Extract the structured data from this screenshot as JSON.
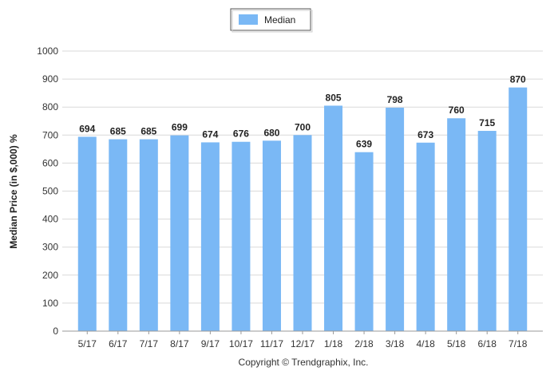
{
  "chart_data": {
    "type": "bar",
    "categories": [
      "5/17",
      "6/17",
      "7/17",
      "8/17",
      "9/17",
      "10/17",
      "11/17",
      "12/17",
      "1/18",
      "2/18",
      "3/18",
      "4/18",
      "5/18",
      "6/18",
      "7/18"
    ],
    "series": [
      {
        "name": "Median",
        "values": [
          694,
          685,
          685,
          699,
          674,
          676,
          680,
          700,
          805,
          639,
          798,
          673,
          760,
          715,
          870
        ]
      }
    ],
    "data_labels": [
      "694",
      "685",
      "685",
      "699",
      "674",
      "676",
      "680",
      "700",
      "805",
      "639",
      "798",
      "673",
      "760",
      "715",
      "870"
    ],
    "title": "",
    "xlabel": "",
    "ylabel": "Median Price (in $,000) %",
    "ylim": [
      0,
      1000
    ],
    "yticks": [
      "0",
      "100",
      "200",
      "300",
      "400",
      "500",
      "600",
      "700",
      "800",
      "900",
      "1000"
    ],
    "grid": true,
    "legend_position": "top-center",
    "bar_color": "#7ab8f5",
    "footer": "Copyright © Trendgraphix, Inc."
  }
}
